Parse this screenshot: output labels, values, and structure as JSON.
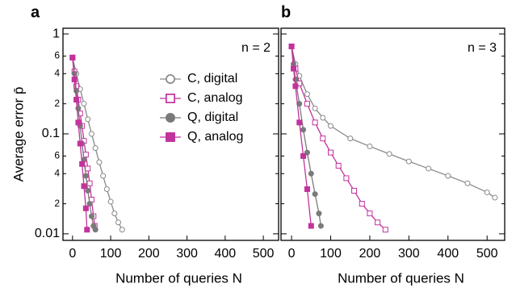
{
  "chart_data": [
    {
      "type": "line",
      "panel_label": "a",
      "annotation": "n = 2",
      "ylabel": "Average error p̄",
      "xlabel": "Number of queries  N",
      "log_y": true,
      "legend": "upper right",
      "xlim": [
        -25,
        540
      ],
      "xticks": [
        0,
        100,
        200,
        300,
        400,
        500
      ],
      "ylim": [
        0.0086,
        1.14
      ],
      "yticks": [
        1,
        {
          "value": 0.6,
          "label": "6"
        },
        {
          "value": 0.4,
          "label": "4"
        },
        {
          "value": 0.2,
          "label": "2"
        },
        0.1,
        {
          "value": 0.06,
          "label": "6"
        },
        {
          "value": 0.04,
          "label": "4"
        },
        {
          "value": 0.02,
          "label": "2"
        },
        0.01
      ],
      "series": [
        {
          "name": "C, digital",
          "color": "#8a8a8a",
          "marker": "circle",
          "filled": false,
          "x": [
            0,
            10,
            20,
            30,
            40,
            50,
            60,
            70,
            80,
            90,
            100,
            110,
            120,
            130
          ],
          "values": [
            0.58,
            0.4,
            0.28,
            0.2,
            0.14,
            0.1,
            0.072,
            0.052,
            0.038,
            0.028,
            0.021,
            0.016,
            0.013,
            0.011
          ]
        },
        {
          "name": "C, analog",
          "color": "#c2339c",
          "marker": "square",
          "filled": false,
          "x": [
            0,
            5,
            10,
            15,
            20,
            25,
            30,
            35,
            40,
            45,
            50,
            55,
            58
          ],
          "values": [
            0.58,
            0.42,
            0.3,
            0.22,
            0.16,
            0.12,
            0.085,
            0.062,
            0.045,
            0.032,
            0.022,
            0.015,
            0.012
          ]
        },
        {
          "name": "Q, digital",
          "color": "#7a7a7a",
          "marker": "circle",
          "filled": true,
          "x": [
            0,
            5,
            10,
            15,
            20,
            25,
            30,
            35,
            40,
            45,
            50,
            55,
            60
          ],
          "values": [
            0.58,
            0.4,
            0.27,
            0.18,
            0.12,
            0.08,
            0.055,
            0.038,
            0.027,
            0.02,
            0.015,
            0.012,
            0.011
          ]
        },
        {
          "name": "Q, analog",
          "color": "#c2339c",
          "marker": "square",
          "filled": true,
          "x": [
            0,
            5,
            10,
            15,
            20,
            25,
            30,
            35,
            38
          ],
          "values": [
            0.58,
            0.35,
            0.22,
            0.13,
            0.08,
            0.05,
            0.03,
            0.018,
            0.011
          ]
        }
      ]
    },
    {
      "type": "line",
      "panel_label": "b",
      "annotation": "n = 3",
      "xlabel": "Number of queries  N",
      "log_y": true,
      "xlim": [
        -27,
        545
      ],
      "xticks": [
        0,
        100,
        200,
        300,
        400,
        500
      ],
      "ylim": [
        0.0086,
        1.14
      ],
      "series": [
        {
          "color": "#8a8a8a",
          "marker": "circle",
          "filled": false,
          "x": [
            0,
            10,
            20,
            40,
            60,
            80,
            100,
            150,
            200,
            250,
            300,
            350,
            400,
            450,
            500,
            520
          ],
          "values": [
            0.75,
            0.5,
            0.38,
            0.25,
            0.18,
            0.145,
            0.12,
            0.09,
            0.075,
            0.063,
            0.053,
            0.045,
            0.038,
            0.032,
            0.026,
            0.023
          ]
        },
        {
          "color": "#c2339c",
          "marker": "square",
          "filled": false,
          "x": [
            0,
            10,
            20,
            40,
            60,
            80,
            100,
            120,
            140,
            160,
            180,
            200,
            220,
            240
          ],
          "values": [
            0.75,
            0.45,
            0.32,
            0.2,
            0.13,
            0.09,
            0.065,
            0.048,
            0.036,
            0.027,
            0.02,
            0.016,
            0.013,
            0.011
          ]
        },
        {
          "color": "#7a7a7a",
          "marker": "circle",
          "filled": true,
          "x": [
            0,
            5,
            10,
            20,
            30,
            40,
            50,
            60,
            70,
            75
          ],
          "values": [
            0.75,
            0.5,
            0.35,
            0.2,
            0.11,
            0.065,
            0.04,
            0.025,
            0.016,
            0.012
          ]
        },
        {
          "color": "#c2339c",
          "marker": "square",
          "filled": true,
          "x": [
            0,
            5,
            10,
            20,
            30,
            40,
            50
          ],
          "values": [
            0.75,
            0.45,
            0.3,
            0.13,
            0.06,
            0.028,
            0.012
          ]
        }
      ]
    }
  ]
}
